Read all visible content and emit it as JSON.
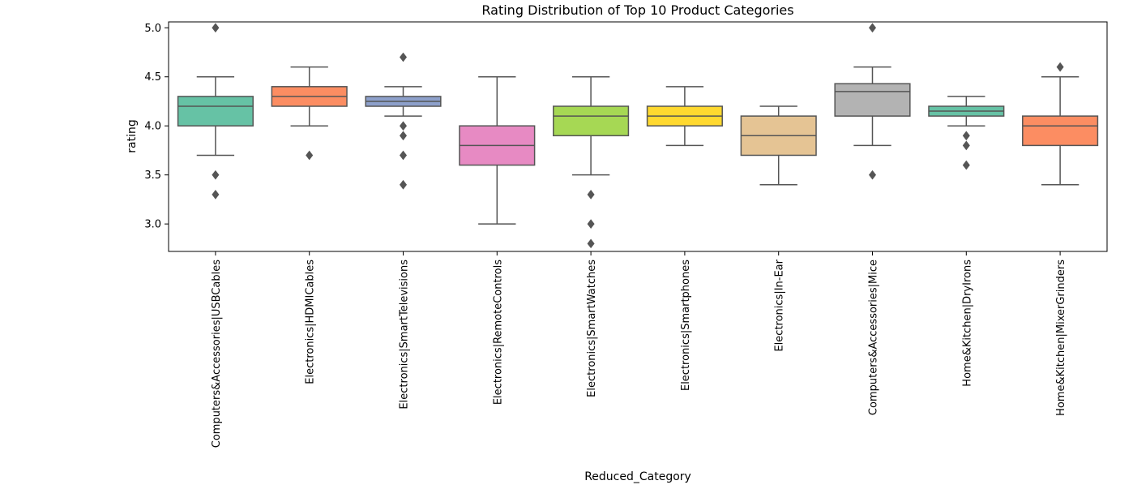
{
  "chart_data": {
    "type": "box",
    "title": "Rating Distribution of Top 10 Product Categories",
    "xlabel": "Reduced_Category",
    "ylabel": "rating",
    "ylim": [
      2.72,
      5.06
    ],
    "yticks": [
      3.0,
      3.5,
      4.0,
      4.5,
      5.0
    ],
    "ytick_labels": [
      "3.0",
      "3.5",
      "4.0",
      "4.5",
      "5.0"
    ],
    "grid": false,
    "categories": [
      "Computers&Accessories|USBCables",
      "Electronics|HDMICables",
      "Electronics|SmartTelevisions",
      "Electronics|RemoteControls",
      "Electronics|SmartWatches",
      "Electronics|Smartphones",
      "Electronics|In-Ear",
      "Computers&Accessories|Mice",
      "Home&Kitchen|DryIrons",
      "Home&Kitchen|MixerGrinders"
    ],
    "boxes": [
      {
        "whislo": 3.7,
        "q1": 4.0,
        "med": 4.2,
        "q3": 4.3,
        "whishi": 4.5,
        "fliers": [
          5.0,
          3.5,
          3.3
        ],
        "color": "#66c2a5"
      },
      {
        "whislo": 4.0,
        "q1": 4.2,
        "med": 4.3,
        "q3": 4.4,
        "whishi": 4.6,
        "fliers": [
          3.7
        ],
        "color": "#fc8d62"
      },
      {
        "whislo": 4.1,
        "q1": 4.2,
        "med": 4.25,
        "q3": 4.3,
        "whishi": 4.4,
        "fliers": [
          4.7,
          4.0,
          3.9,
          3.7,
          3.4
        ],
        "color": "#8da0cb"
      },
      {
        "whislo": 3.0,
        "q1": 3.6,
        "med": 3.8,
        "q3": 4.0,
        "whishi": 4.5,
        "fliers": [],
        "color": "#e78ac3"
      },
      {
        "whislo": 3.5,
        "q1": 3.9,
        "med": 4.1,
        "q3": 4.2,
        "whishi": 4.5,
        "fliers": [
          3.3,
          3.0,
          2.8
        ],
        "color": "#a6d854"
      },
      {
        "whislo": 3.8,
        "q1": 4.0,
        "med": 4.1,
        "q3": 4.2,
        "whishi": 4.4,
        "fliers": [],
        "color": "#ffd92f"
      },
      {
        "whislo": 3.4,
        "q1": 3.7,
        "med": 3.9,
        "q3": 4.1,
        "whishi": 4.2,
        "fliers": [],
        "color": "#e5c494"
      },
      {
        "whislo": 3.8,
        "q1": 4.1,
        "med": 4.35,
        "q3": 4.43,
        "whishi": 4.6,
        "fliers": [
          5.0,
          3.5
        ],
        "color": "#b3b3b3"
      },
      {
        "whislo": 4.0,
        "q1": 4.1,
        "med": 4.15,
        "q3": 4.2,
        "whishi": 4.3,
        "fliers": [
          3.9,
          3.8,
          3.6
        ],
        "color": "#66c2a5"
      },
      {
        "whislo": 3.4,
        "q1": 3.8,
        "med": 4.0,
        "q3": 4.1,
        "whishi": 4.5,
        "fliers": [
          4.6
        ],
        "color": "#fc8d62"
      }
    ],
    "line_color": "#555555",
    "flier_color": "#555555"
  }
}
